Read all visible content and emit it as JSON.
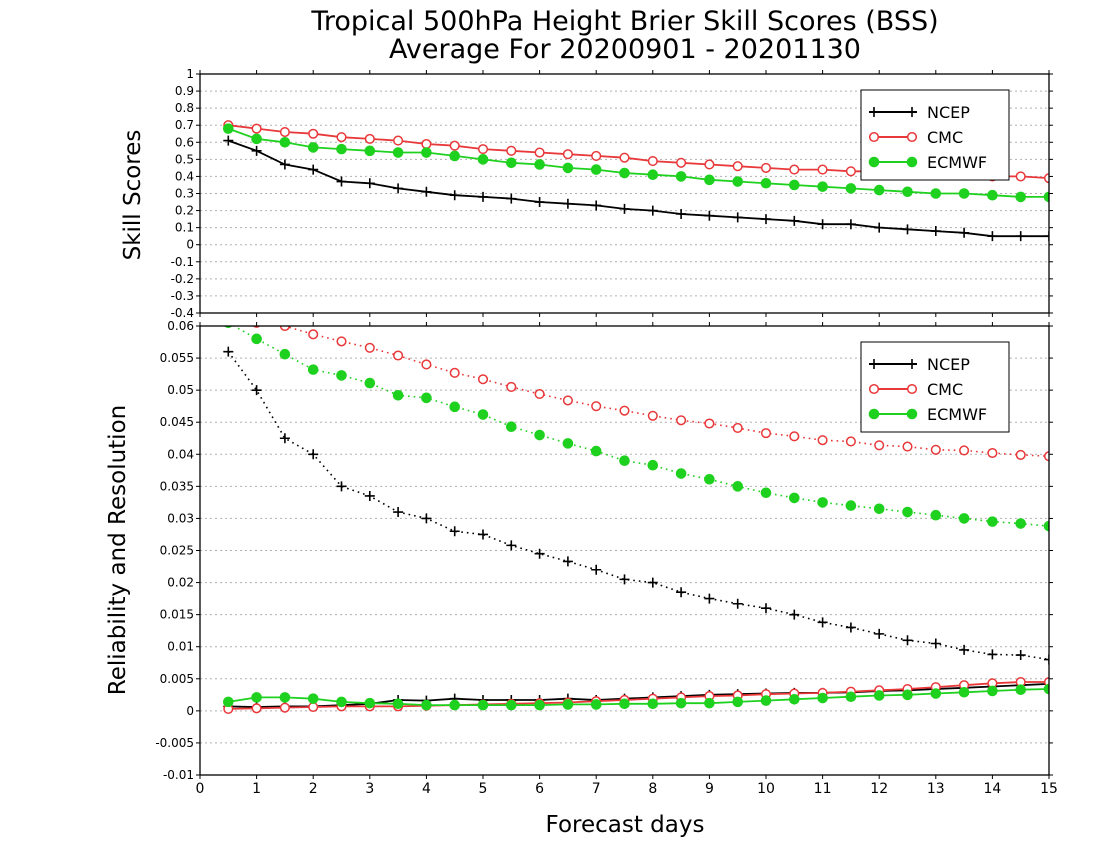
{
  "title_line1": "Tropical 500hPa Height Brier Skill Scores (BSS)",
  "title_line2": "Average For 20200901 - 20201130",
  "xlabel": "Forecast days",
  "colors": {
    "NCEP": "#000000",
    "CMC": "#e8383a",
    "ECMWF": "#1fd11f"
  },
  "chart_data": [
    {
      "type": "line",
      "panel": "top",
      "ylabel": "Skill Scores",
      "xlim": [
        0,
        15
      ],
      "ylim": [
        -0.4,
        1
      ],
      "x_ticks": [
        0,
        1,
        2,
        3,
        4,
        5,
        6,
        7,
        8,
        9,
        10,
        11,
        12,
        13,
        14,
        15
      ],
      "y_ticks": [
        "-0.4",
        "-0.3",
        "-0.2",
        "-0.1",
        "0",
        "0.1",
        "0.2",
        "0.3",
        "0.4",
        "0.5",
        "0.6",
        "0.7",
        "0.8",
        "0.9",
        "1"
      ],
      "grid": true,
      "legend": {
        "position": "top-right",
        "entries": [
          "NCEP",
          "CMC",
          "ECMWF"
        ]
      },
      "x": [
        0.5,
        1,
        1.5,
        2,
        2.5,
        3,
        3.5,
        4,
        4.5,
        5,
        5.5,
        6,
        6.5,
        7,
        7.5,
        8,
        8.5,
        9,
        9.5,
        10,
        10.5,
        11,
        11.5,
        12,
        12.5,
        13,
        13.5,
        14,
        14.5,
        15
      ],
      "series": [
        {
          "name": "NCEP",
          "marker": "plus",
          "style": "solid",
          "values": [
            0.61,
            0.55,
            0.47,
            0.44,
            0.37,
            0.36,
            0.33,
            0.31,
            0.29,
            0.28,
            0.27,
            0.25,
            0.24,
            0.23,
            0.21,
            0.2,
            0.18,
            0.17,
            0.16,
            0.15,
            0.14,
            0.12,
            0.12,
            0.1,
            0.09,
            0.08,
            0.07,
            0.05,
            0.05,
            0.05
          ]
        },
        {
          "name": "CMC",
          "marker": "open-circle",
          "style": "solid",
          "values": [
            0.7,
            0.68,
            0.66,
            0.65,
            0.63,
            0.62,
            0.61,
            0.59,
            0.58,
            0.56,
            0.55,
            0.54,
            0.53,
            0.52,
            0.51,
            0.49,
            0.48,
            0.47,
            0.46,
            0.45,
            0.44,
            0.44,
            0.43,
            0.43,
            0.42,
            0.41,
            0.41,
            0.4,
            0.4,
            0.39
          ]
        },
        {
          "name": "ECMWF",
          "marker": "filled-circle",
          "style": "solid",
          "values": [
            0.68,
            0.62,
            0.6,
            0.57,
            0.56,
            0.55,
            0.54,
            0.54,
            0.52,
            0.5,
            0.48,
            0.47,
            0.45,
            0.44,
            0.42,
            0.41,
            0.4,
            0.38,
            0.37,
            0.36,
            0.35,
            0.34,
            0.33,
            0.32,
            0.31,
            0.3,
            0.3,
            0.29,
            0.28,
            0.28
          ]
        }
      ]
    },
    {
      "type": "line",
      "panel": "bottom",
      "ylabel": "Reliability and Resolution",
      "xlim": [
        0,
        15
      ],
      "ylim": [
        -0.01,
        0.06
      ],
      "x_ticks": [
        0,
        1,
        2,
        3,
        4,
        5,
        6,
        7,
        8,
        9,
        10,
        11,
        12,
        13,
        14,
        15
      ],
      "y_ticks": [
        "-0.01",
        "-0.005",
        "0",
        "0.005",
        "0.01",
        "0.015",
        "0.02",
        "0.025",
        "0.03",
        "0.035",
        "0.04",
        "0.045",
        "0.05",
        "0.055",
        "0.06"
      ],
      "grid": true,
      "legend": {
        "position": "top-right",
        "entries": [
          "NCEP",
          "CMC",
          "ECMWF"
        ]
      },
      "x": [
        0.5,
        1,
        1.5,
        2,
        2.5,
        3,
        3.5,
        4,
        4.5,
        5,
        5.5,
        6,
        6.5,
        7,
        7.5,
        8,
        8.5,
        9,
        9.5,
        10,
        10.5,
        11,
        11.5,
        12,
        12.5,
        13,
        13.5,
        14,
        14.5,
        15
      ],
      "series": [
        {
          "name": "NCEP",
          "marker": "plus",
          "style": "dotted",
          "kind": "resolution",
          "values": [
            0.056,
            0.05,
            0.0425,
            0.04,
            0.035,
            0.0335,
            0.031,
            0.03,
            0.028,
            0.0275,
            0.0258,
            0.0245,
            0.0233,
            0.022,
            0.0205,
            0.02,
            0.0185,
            0.0175,
            0.0167,
            0.016,
            0.015,
            0.0138,
            0.013,
            0.012,
            0.011,
            0.0105,
            0.0095,
            0.0088,
            0.0087,
            0.008
          ]
        },
        {
          "name": "CMC",
          "marker": "open-circle",
          "style": "dotted",
          "kind": "resolution",
          "values": [
            0.061,
            0.0605,
            0.06,
            0.0587,
            0.0576,
            0.0566,
            0.0554,
            0.054,
            0.0527,
            0.0517,
            0.0505,
            0.0494,
            0.0484,
            0.0475,
            0.0468,
            0.046,
            0.0453,
            0.0448,
            0.0441,
            0.0433,
            0.0428,
            0.0422,
            0.042,
            0.0414,
            0.0412,
            0.0407,
            0.0406,
            0.0402,
            0.0399,
            0.0397
          ]
        },
        {
          "name": "ECMWF",
          "marker": "filled-circle",
          "style": "dotted",
          "kind": "resolution",
          "values": [
            0.0605,
            0.058,
            0.0556,
            0.0532,
            0.0523,
            0.0511,
            0.0492,
            0.0488,
            0.0474,
            0.0462,
            0.0443,
            0.043,
            0.0417,
            0.0405,
            0.039,
            0.0383,
            0.037,
            0.0361,
            0.035,
            0.034,
            0.0332,
            0.0325,
            0.032,
            0.0315,
            0.031,
            0.0305,
            0.03,
            0.0295,
            0.0292,
            0.0288
          ]
        },
        {
          "name": "NCEP",
          "marker": "plus",
          "style": "solid",
          "kind": "reliability",
          "values": [
            0.0007,
            0.0006,
            0.0007,
            0.0007,
            0.0009,
            0.0011,
            0.0017,
            0.0016,
            0.0019,
            0.0017,
            0.0017,
            0.0017,
            0.0019,
            0.0017,
            0.0019,
            0.0021,
            0.0023,
            0.0025,
            0.0026,
            0.0027,
            0.0028,
            0.0028,
            0.0029,
            0.0031,
            0.0032,
            0.0034,
            0.0036,
            0.0038,
            0.004,
            0.0042
          ]
        },
        {
          "name": "CMC",
          "marker": "open-circle",
          "style": "solid",
          "kind": "reliability",
          "values": [
            0.0003,
            0.0004,
            0.0005,
            0.0006,
            0.0007,
            0.0007,
            0.0007,
            0.0008,
            0.0009,
            0.001,
            0.0011,
            0.0012,
            0.0013,
            0.0015,
            0.0017,
            0.0019,
            0.0021,
            0.0023,
            0.0024,
            0.0026,
            0.0027,
            0.0028,
            0.003,
            0.0032,
            0.0034,
            0.0037,
            0.004,
            0.0043,
            0.0045,
            0.0045
          ]
        },
        {
          "name": "ECMWF",
          "marker": "filled-circle",
          "style": "solid",
          "kind": "reliability",
          "values": [
            0.0014,
            0.0021,
            0.0021,
            0.0019,
            0.0014,
            0.0012,
            0.0011,
            0.0009,
            0.0009,
            0.0009,
            0.0009,
            0.0009,
            0.001,
            0.001,
            0.0011,
            0.0011,
            0.0012,
            0.0012,
            0.0014,
            0.0016,
            0.0018,
            0.002,
            0.0022,
            0.0024,
            0.0025,
            0.0027,
            0.0029,
            0.0031,
            0.0033,
            0.0034
          ]
        }
      ]
    }
  ]
}
